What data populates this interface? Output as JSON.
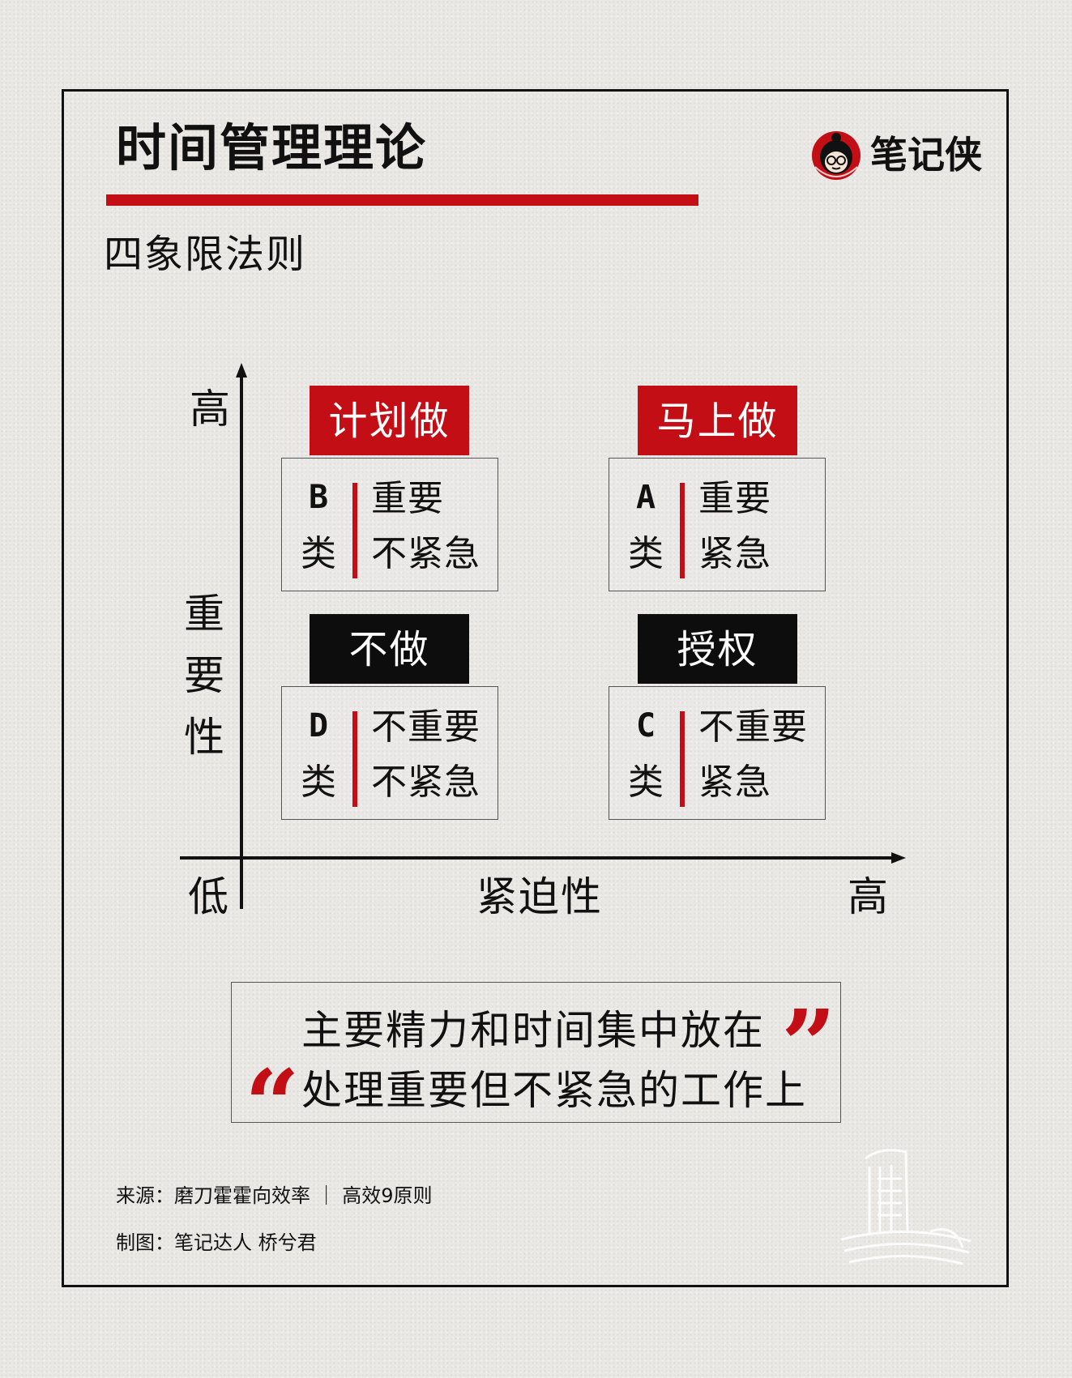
{
  "header": {
    "title": "时间管理理论",
    "subtitle": "四象限法则"
  },
  "brand": {
    "name": "笔记侠",
    "logo_icon": "brand-avatar-icon"
  },
  "axes": {
    "y_high": "高",
    "y_label_chars": [
      "重",
      "要",
      "性"
    ],
    "origin_low": "低",
    "x_label": "紧迫性",
    "x_high": "高"
  },
  "quadrants": [
    {
      "tag": "计划做",
      "letter": "B",
      "class": "类",
      "line1": "重要",
      "line2": "不紧急",
      "tag_color": "#c20e14"
    },
    {
      "tag": "马上做",
      "letter": "A",
      "class": "类",
      "line1": "重要",
      "line2": "紧急",
      "tag_color": "#c20e14"
    },
    {
      "tag": "不做",
      "letter": "D",
      "class": "类",
      "line1": "不重要",
      "line2": "不紧急",
      "tag_color": "#0d0d0d"
    },
    {
      "tag": "授权",
      "letter": "C",
      "class": "类",
      "line1": "不重要",
      "line2": "紧急",
      "tag_color": "#0d0d0d"
    }
  ],
  "quote": {
    "line1": "主要精力和时间集中放在",
    "line2": "处理重要但不紧急的工作上",
    "open_mark": "“",
    "close_mark": "”"
  },
  "footer": {
    "source": "来源：磨刀霍霍向效率 ｜ 高效9原则",
    "credit": "制图：笔记达人  桥兮君"
  },
  "colors": {
    "accent": "#c20e14",
    "dark": "#0d0d0d"
  }
}
